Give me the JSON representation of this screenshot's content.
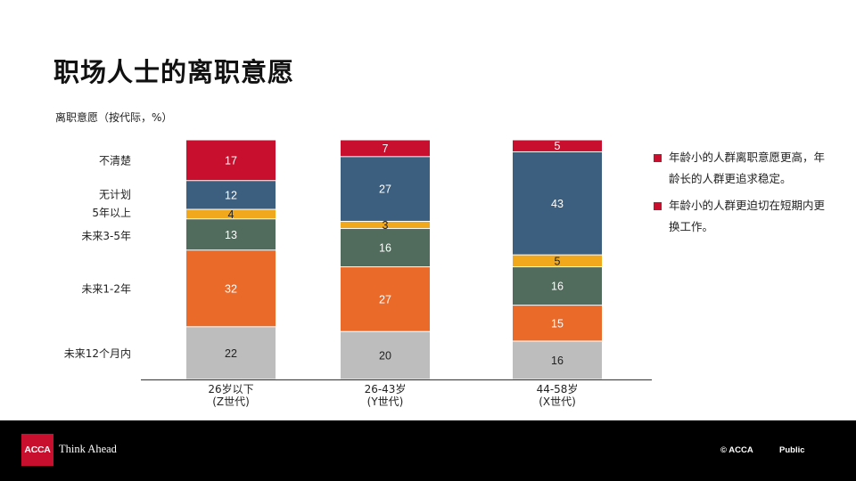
{
  "title": "职场人士的离职意愿",
  "subtitle": "离职意愿（按代际，%）",
  "colors": {
    "accent": "#c8102e",
    "footer_bg": "#000000"
  },
  "chart_data": {
    "type": "bar",
    "stacked": true,
    "categories": [
      {
        "line1": "26岁以下",
        "line2": "(Z世代)"
      },
      {
        "line1": "26-43岁",
        "line2": "(Y世代)"
      },
      {
        "line1": "44-58岁",
        "line2": "(X世代)"
      }
    ],
    "series": [
      {
        "name": "未来12个月内",
        "color": "#bdbdbd",
        "values": [
          22,
          20,
          16
        ]
      },
      {
        "name": "未来1-2年",
        "color": "#ea6a2a",
        "values": [
          32,
          27,
          15
        ]
      },
      {
        "name": "未来3-5年",
        "color": "#516b5c",
        "values": [
          13,
          16,
          16
        ]
      },
      {
        "name": "5年以上",
        "color": "#f2a81d",
        "values": [
          4,
          3,
          5
        ]
      },
      {
        "name": "无计划",
        "color": "#3c5f80",
        "values": [
          12,
          27,
          43
        ]
      },
      {
        "name": "不清楚",
        "color": "#c8102e",
        "values": [
          17,
          7,
          5
        ]
      }
    ],
    "ylim": [
      0,
      100
    ],
    "legend_position": "left"
  },
  "legend": {
    "items": [
      {
        "text": "年龄小的人群离职意愿更高，年龄长的人群更追求稳定。",
        "color": "#c8102e"
      },
      {
        "text": "年龄小的人群更迫切在短期内更换工作。",
        "color": "#c8102e"
      }
    ]
  },
  "footer": {
    "logo_text": "ACCA",
    "tagline": "Think Ahead",
    "copyright": "© ACCA",
    "classification": "Public"
  }
}
